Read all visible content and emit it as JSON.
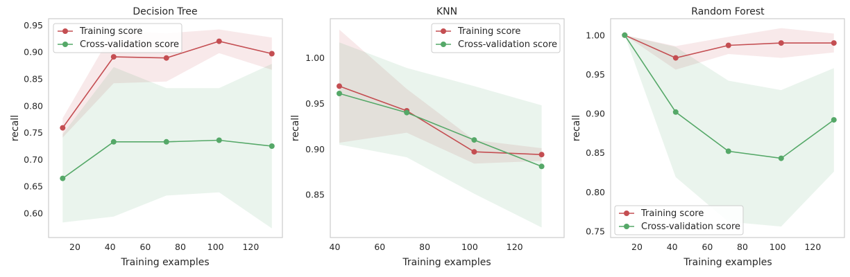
{
  "chart_data": [
    {
      "type": "line",
      "title": "Decision Tree",
      "xlabel": "Training examples",
      "ylabel": "recall",
      "xlim": [
        5,
        138
      ],
      "ylim": [
        0.555,
        0.962
      ],
      "xticks": [
        "20",
        "40",
        "60",
        "80",
        "100",
        "120"
      ],
      "yticks": [
        "0.60",
        "0.65",
        "0.70",
        "0.75",
        "0.80",
        "0.85",
        "0.90",
        "0.95"
      ],
      "grid": false,
      "legend_position": "top-left",
      "x": [
        13,
        42,
        72,
        102,
        132
      ],
      "series": [
        {
          "name": "Training score",
          "color": "#c44e52",
          "values": [
            0.759,
            0.891,
            0.889,
            0.92,
            0.897
          ],
          "band_upper": [
            0.777,
            0.94,
            0.935,
            0.942,
            0.927
          ],
          "band_lower": [
            0.741,
            0.842,
            0.845,
            0.898,
            0.867
          ]
        },
        {
          "name": "Cross-validation score",
          "color": "#55a868",
          "values": [
            0.665,
            0.733,
            0.733,
            0.736,
            0.725
          ],
          "band_upper": [
            0.747,
            0.872,
            0.833,
            0.833,
            0.878
          ],
          "band_lower": [
            0.583,
            0.594,
            0.633,
            0.639,
            0.572
          ]
        }
      ]
    },
    {
      "type": "line",
      "title": "KNN",
      "xlabel": "Training examples",
      "ylabel": "recall",
      "xlim": [
        38,
        142
      ],
      "ylim": [
        0.803,
        1.043
      ],
      "xticks": [
        "40",
        "60",
        "80",
        "100",
        "120"
      ],
      "yticks": [
        "0.85",
        "0.90",
        "0.95",
        "1.00"
      ],
      "grid": false,
      "legend_position": "top-right",
      "x": [
        42,
        72,
        102,
        132
      ],
      "series": [
        {
          "name": "Training score",
          "color": "#c44e52",
          "values": [
            0.969,
            0.942,
            0.897,
            0.894
          ],
          "band_upper": [
            1.031,
            0.966,
            0.91,
            0.901
          ],
          "band_lower": [
            0.907,
            0.918,
            0.884,
            0.887
          ]
        },
        {
          "name": "Cross-validation score",
          "color": "#55a868",
          "values": [
            0.961,
            0.94,
            0.91,
            0.881
          ],
          "band_upper": [
            1.017,
            0.989,
            0.969,
            0.948
          ],
          "band_lower": [
            0.905,
            0.891,
            0.851,
            0.814
          ]
        }
      ]
    },
    {
      "type": "line",
      "title": "Random Forest",
      "xlabel": "Training examples",
      "ylabel": "recall",
      "xlim": [
        5,
        138
      ],
      "ylim": [
        0.742,
        1.021
      ],
      "xticks": [
        "20",
        "40",
        "60",
        "80",
        "100",
        "120"
      ],
      "yticks": [
        "0.75",
        "0.80",
        "0.85",
        "0.90",
        "0.95",
        "1.00"
      ],
      "grid": false,
      "legend_position": "bottom-left",
      "x": [
        13,
        42,
        72,
        102,
        132
      ],
      "series": [
        {
          "name": "Training score",
          "color": "#c44e52",
          "values": [
            1.0,
            0.971,
            0.987,
            0.99,
            0.99
          ],
          "band_upper": [
            1.0,
            0.986,
            0.998,
            1.009,
            1.002
          ],
          "band_lower": [
            1.0,
            0.956,
            0.976,
            0.971,
            0.978
          ]
        },
        {
          "name": "Cross-validation score",
          "color": "#55a868",
          "values": [
            1.0,
            0.902,
            0.852,
            0.843,
            0.892
          ],
          "band_upper": [
            1.0,
            0.985,
            0.942,
            0.93,
            0.958
          ],
          "band_lower": [
            1.0,
            0.819,
            0.762,
            0.756,
            0.826
          ]
        }
      ]
    }
  ]
}
